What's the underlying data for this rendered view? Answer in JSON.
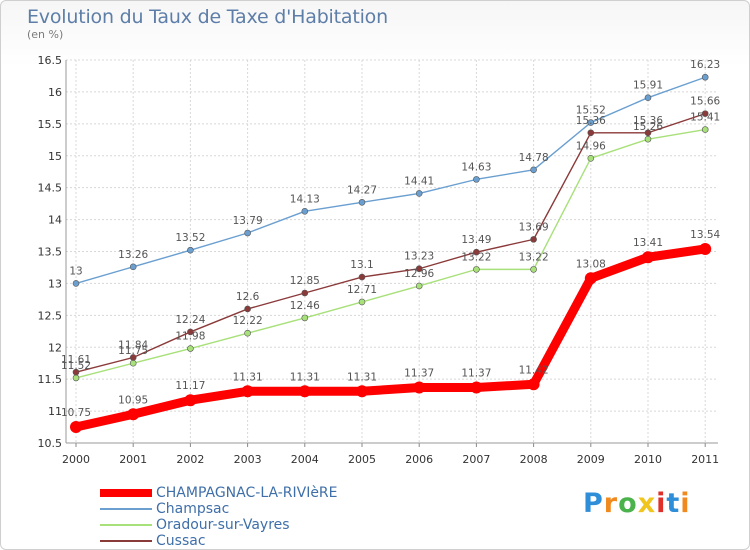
{
  "header": {
    "title": "Evolution du Taux de Taxe d'Habitation",
    "subtitle": "(en %)"
  },
  "logo": {
    "text": "Proxiti",
    "colors": [
      "#2f8ed8",
      "#f08a1e",
      "#4bb34b",
      "#f0c51e",
      "#e0302a",
      "#2f8ed8",
      "#f08a1e"
    ]
  },
  "chart_data": {
    "type": "line",
    "title": "Evolution du Taux de Taxe d'Habitation",
    "ylabel": "(en %)",
    "xlabel": "",
    "x": [
      "2000",
      "2001",
      "2002",
      "2003",
      "2004",
      "2005",
      "2006",
      "2007",
      "2008",
      "2009",
      "2010",
      "2011"
    ],
    "ylim": [
      10.5,
      16.5
    ],
    "yticks": [
      "10.5",
      "11",
      "11.5",
      "12",
      "12.5",
      "13",
      "13.5",
      "14",
      "14.5",
      "15",
      "15.5",
      "16",
      "16.5"
    ],
    "grid": true,
    "legend_position": "bottom-left",
    "series": [
      {
        "name": "CHAMPAGNAC-LA-RIVIèRE",
        "color": "#ff0000",
        "values": [
          10.75,
          10.95,
          11.17,
          11.31,
          11.31,
          11.31,
          11.37,
          11.37,
          11.42,
          13.08,
          13.41,
          13.54
        ],
        "labels": [
          "10.75",
          "10.95",
          "11.17",
          "11.31",
          "11.31",
          "11.31",
          "11.37",
          "11.37",
          "11.42",
          "13.08",
          "13.41",
          "13.54"
        ]
      },
      {
        "name": "Champsac",
        "color": "#6a9fd0",
        "values": [
          13,
          13.26,
          13.52,
          13.79,
          14.13,
          14.27,
          14.41,
          14.63,
          14.78,
          15.52,
          15.91,
          16.23
        ],
        "labels": [
          "13",
          "13.26",
          "13.52",
          "13.79",
          "14.13",
          "14.27",
          "14.41",
          "14.63",
          "14.78",
          "15.52",
          "15.91",
          "16.23"
        ]
      },
      {
        "name": "Oradour-sur-Vayres",
        "color": "#a8e07a",
        "values": [
          11.52,
          11.75,
          11.98,
          12.22,
          12.46,
          12.71,
          12.96,
          13.22,
          13.22,
          14.96,
          15.26,
          15.41
        ],
        "labels": [
          "11.52",
          "11.75",
          "11.98",
          "12.22",
          "12.46",
          "12.71",
          "12.96",
          "13.22",
          "13.22",
          "14.96",
          "15.26",
          "15.41"
        ]
      },
      {
        "name": "Cussac",
        "color": "#8b3a3a",
        "values": [
          11.61,
          11.84,
          12.24,
          12.6,
          12.85,
          13.1,
          13.23,
          13.49,
          13.69,
          15.36,
          15.36,
          15.66
        ],
        "labels": [
          "11.61",
          "11.84",
          "12.24",
          "12.6",
          "12.85",
          "13.1",
          "13.23",
          "13.49",
          "13.69",
          "15.36",
          "15.36",
          "15.66"
        ]
      }
    ]
  }
}
